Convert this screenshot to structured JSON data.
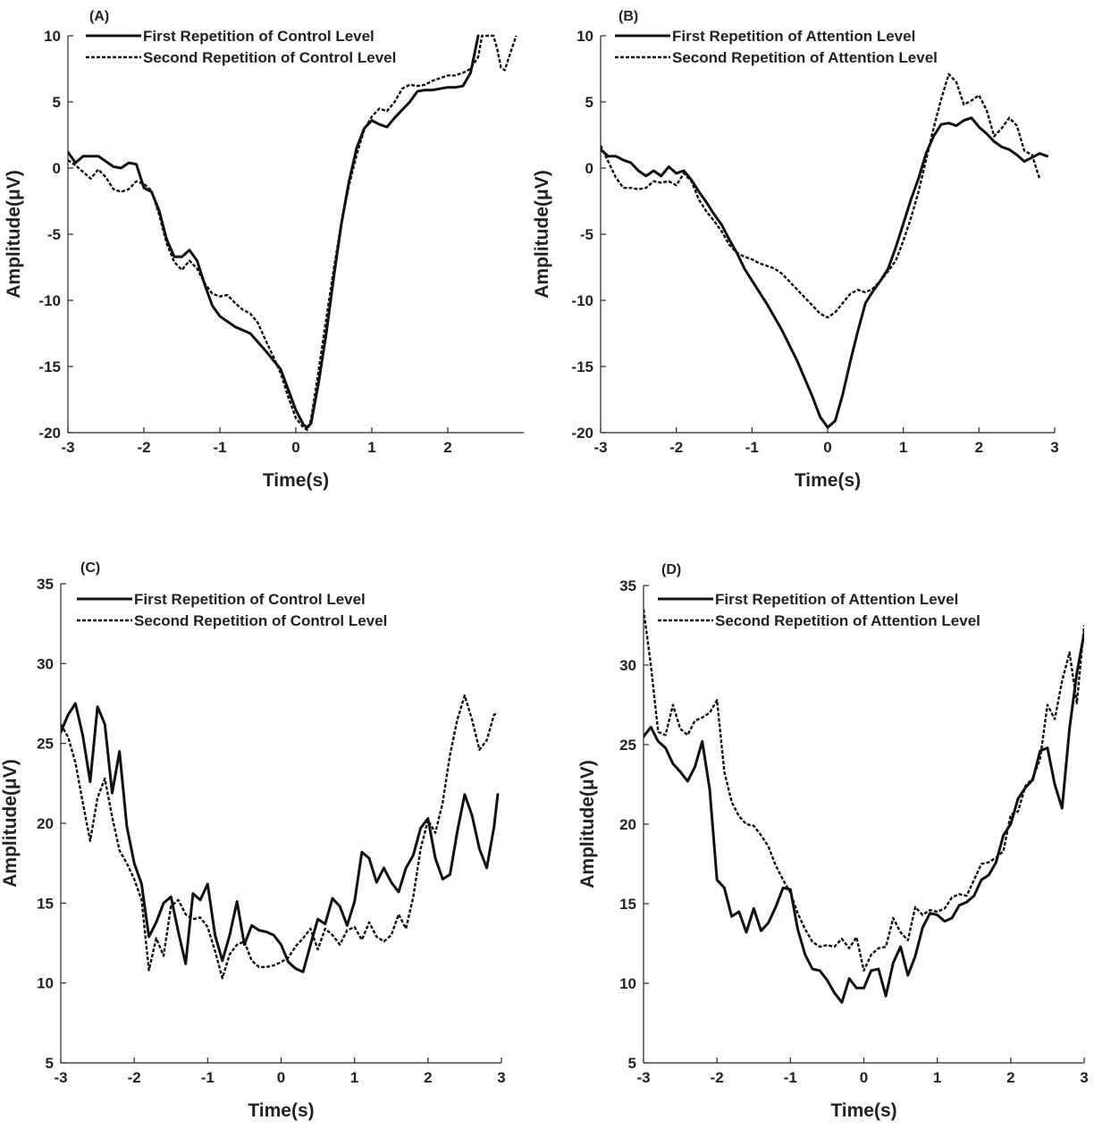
{
  "chart_data": [
    {
      "type": "line",
      "panel_label": "(A)",
      "xlabel": "Time(s)",
      "ylabel": "Amplitude(μV)",
      "xlim": [
        -3,
        3
      ],
      "ylim": [
        -20,
        10
      ],
      "xticks": [
        -3,
        -2,
        -1,
        0,
        1,
        2
      ],
      "yticks": [
        10,
        5,
        0,
        -5,
        -10,
        -15,
        -20
      ],
      "legend_position": "top-left",
      "series": [
        {
          "name": "First Repetition of Control Level",
          "style": "solid",
          "x": [
            -3,
            -2.9,
            -2.8,
            -2.6,
            -2.4,
            -2.3,
            -2.2,
            -2.1,
            -2,
            -1.9,
            -1.8,
            -1.7,
            -1.6,
            -1.5,
            -1.4,
            -1.3,
            -1.2,
            -1.1,
            -1,
            -0.8,
            -0.6,
            -0.4,
            -0.2,
            0,
            0.1,
            0.15,
            0.2,
            0.3,
            0.4,
            0.5,
            0.6,
            0.7,
            0.8,
            0.9,
            1,
            1.1,
            1.2,
            1.3,
            1.4,
            1.5,
            1.6,
            1.7,
            1.8,
            1.9,
            2,
            2.1,
            2.2,
            2.3,
            2.35,
            2.4
          ],
          "y": [
            1.2,
            0.4,
            0.9,
            0.9,
            0.1,
            0.0,
            0.4,
            0.3,
            -1.5,
            -1.8,
            -3.2,
            -5.4,
            -6.7,
            -6.7,
            -6.2,
            -7.0,
            -8.8,
            -10.4,
            -11.2,
            -12.0,
            -12.5,
            -13.8,
            -15.2,
            -18.3,
            -19.4,
            -19.6,
            -19.3,
            -16.2,
            -12.5,
            -8.2,
            -4.2,
            -1.0,
            1.5,
            3.0,
            3.6,
            3.3,
            3.1,
            3.8,
            4.4,
            5.0,
            5.8,
            5.9,
            5.9,
            6.0,
            6.1,
            6.1,
            6.2,
            7.2,
            8.6,
            10.0
          ]
        },
        {
          "name": "Second Repetition of Control Level",
          "style": "dashed",
          "x": [
            -3,
            -2.9,
            -2.8,
            -2.7,
            -2.6,
            -2.5,
            -2.4,
            -2.3,
            -2.2,
            -2.1,
            -2,
            -1.9,
            -1.8,
            -1.7,
            -1.6,
            -1.5,
            -1.4,
            -1.3,
            -1.2,
            -1.1,
            -1,
            -0.9,
            -0.8,
            -0.7,
            -0.6,
            -0.5,
            -0.4,
            -0.3,
            -0.2,
            -0.1,
            0,
            0.1,
            0.15,
            0.2,
            0.3,
            0.4,
            0.5,
            0.6,
            0.7,
            0.8,
            0.9,
            1,
            1.1,
            1.2,
            1.3,
            1.4,
            1.5,
            1.6,
            1.7,
            1.8,
            1.9,
            2,
            2.1,
            2.2,
            2.3,
            2.4,
            2.45,
            2.6,
            2.65,
            2.7,
            2.75,
            2.8,
            2.9
          ],
          "y": [
            0.6,
            0.2,
            -0.3,
            -0.8,
            -0.1,
            -0.7,
            -1.6,
            -1.8,
            -1.6,
            -1.0,
            -1.2,
            -1.7,
            -3.5,
            -5.7,
            -7.1,
            -7.7,
            -7.0,
            -7.6,
            -8.7,
            -9.5,
            -9.7,
            -9.6,
            -10.2,
            -10.7,
            -11.0,
            -11.7,
            -13.0,
            -14.2,
            -15.5,
            -17.3,
            -18.9,
            -19.6,
            -19.8,
            -19.0,
            -15.3,
            -11.4,
            -7.6,
            -4.1,
            -1.3,
            1.0,
            2.9,
            3.9,
            4.5,
            4.3,
            5.0,
            6.0,
            6.3,
            6.2,
            6.3,
            6.6,
            6.8,
            7.0,
            7.0,
            7.2,
            7.5,
            8.4,
            10.0,
            10.0,
            9.0,
            7.6,
            7.4,
            8.3,
            10.0
          ]
        }
      ]
    },
    {
      "type": "line",
      "panel_label": "(B)",
      "xlabel": "Time(s)",
      "ylabel": "Amplitude(μV)",
      "xlim": [
        -3,
        3
      ],
      "ylim": [
        -20,
        10
      ],
      "xticks": [
        -3,
        -2,
        -1,
        0,
        1,
        2,
        3
      ],
      "yticks": [
        10,
        5,
        0,
        -5,
        -10,
        -15,
        -20
      ],
      "legend_position": "top-left",
      "series": [
        {
          "name": "First Repetition of Attention Level",
          "style": "solid",
          "x": [
            -3,
            -2.9,
            -2.8,
            -2.7,
            -2.6,
            -2.5,
            -2.4,
            -2.3,
            -2.2,
            -2.1,
            -2,
            -1.9,
            -1.8,
            -1.7,
            -1.6,
            -1.5,
            -1.4,
            -1.3,
            -1.2,
            -1.1,
            -1,
            -0.8,
            -0.6,
            -0.4,
            -0.2,
            -0.1,
            0,
            0.1,
            0.2,
            0.3,
            0.4,
            0.5,
            0.6,
            0.7,
            0.8,
            0.9,
            1,
            1.1,
            1.2,
            1.3,
            1.4,
            1.5,
            1.6,
            1.7,
            1.8,
            1.9,
            2,
            2.1,
            2.2,
            2.3,
            2.4,
            2.5,
            2.6,
            2.7,
            2.8,
            2.9
          ],
          "y": [
            1.4,
            0.9,
            0.9,
            0.6,
            0.4,
            -0.2,
            -0.6,
            -0.2,
            -0.6,
            0.1,
            -0.4,
            -0.2,
            -0.9,
            -1.8,
            -2.6,
            -3.5,
            -4.3,
            -5.4,
            -6.4,
            -7.6,
            -8.5,
            -10.3,
            -12.3,
            -14.6,
            -17.3,
            -18.8,
            -19.6,
            -19.1,
            -17.1,
            -14.6,
            -12.3,
            -10.2,
            -9.3,
            -8.5,
            -7.6,
            -6.0,
            -4.2,
            -2.4,
            -0.8,
            1.1,
            2.4,
            3.3,
            3.4,
            3.2,
            3.6,
            3.8,
            3.1,
            2.6,
            2.0,
            1.6,
            1.4,
            1.0,
            0.5,
            0.8,
            1.1,
            0.9
          ]
        },
        {
          "name": "Second Repetition of Attention Level",
          "style": "dashed",
          "x": [
            -3,
            -2.9,
            -2.8,
            -2.7,
            -2.6,
            -2.5,
            -2.4,
            -2.3,
            -2.2,
            -2.1,
            -2,
            -1.9,
            -1.8,
            -1.7,
            -1.6,
            -1.5,
            -1.4,
            -1.3,
            -1.2,
            -1.1,
            -1,
            -0.9,
            -0.8,
            -0.7,
            -0.6,
            -0.5,
            -0.4,
            -0.3,
            -0.2,
            -0.1,
            0,
            0.1,
            0.2,
            0.3,
            0.4,
            0.5,
            0.6,
            0.7,
            0.8,
            0.9,
            1,
            1.1,
            1.2,
            1.3,
            1.4,
            1.5,
            1.6,
            1.7,
            1.8,
            1.9,
            2,
            2.1,
            2.2,
            2.3,
            2.4,
            2.5,
            2.6,
            2.7,
            2.8
          ],
          "y": [
            1.7,
            0.5,
            -0.7,
            -1.5,
            -1.5,
            -1.6,
            -1.5,
            -1.0,
            -1.1,
            -1.0,
            -1.3,
            -0.4,
            -1.0,
            -2.4,
            -3.3,
            -4.0,
            -4.8,
            -5.8,
            -6.4,
            -6.7,
            -6.9,
            -7.2,
            -7.4,
            -7.6,
            -8.0,
            -8.6,
            -9.2,
            -9.8,
            -10.4,
            -11.0,
            -11.3,
            -10.9,
            -10.2,
            -9.5,
            -9.2,
            -9.4,
            -9.1,
            -8.5,
            -7.8,
            -7.0,
            -5.5,
            -3.8,
            -1.8,
            0.6,
            3.0,
            5.2,
            7.1,
            6.5,
            4.8,
            5.1,
            5.5,
            4.4,
            2.4,
            3.0,
            3.8,
            3.2,
            1.3,
            1.0,
            -0.8
          ]
        }
      ]
    },
    {
      "type": "line",
      "panel_label": "(C)",
      "xlabel": "Time(s)",
      "ylabel": "Amplitude(μV)",
      "xlim": [
        -3,
        3
      ],
      "ylim": [
        5,
        35
      ],
      "xticks": [
        -3,
        -2,
        -1,
        0,
        1,
        2,
        3
      ],
      "yticks": [
        35,
        30,
        25,
        20,
        15,
        10,
        5
      ],
      "legend_position": "top-left",
      "series": [
        {
          "name": "First Repetition of Control Level",
          "style": "solid",
          "x": [
            -3,
            -2.9,
            -2.8,
            -2.7,
            -2.6,
            -2.5,
            -2.4,
            -2.3,
            -2.2,
            -2.1,
            -2,
            -1.9,
            -1.8,
            -1.7,
            -1.6,
            -1.5,
            -1.4,
            -1.3,
            -1.2,
            -1.1,
            -1,
            -0.9,
            -0.8,
            -0.7,
            -0.6,
            -0.5,
            -0.4,
            -0.3,
            -0.2,
            -0.1,
            0,
            0.1,
            0.2,
            0.3,
            0.4,
            0.5,
            0.6,
            0.7,
            0.8,
            0.9,
            1,
            1.1,
            1.2,
            1.3,
            1.4,
            1.5,
            1.6,
            1.7,
            1.8,
            1.9,
            2,
            2.1,
            2.2,
            2.3,
            2.4,
            2.5,
            2.6,
            2.7,
            2.8,
            2.9,
            2.95
          ],
          "y": [
            25.7,
            26.8,
            27.5,
            25.5,
            22.6,
            27.3,
            26.2,
            21.9,
            24.5,
            19.8,
            17.5,
            16.2,
            12.9,
            13.8,
            15.0,
            15.4,
            13.2,
            11.2,
            15.6,
            15.2,
            16.2,
            13.0,
            11.4,
            13.0,
            15.1,
            12.4,
            13.6,
            13.3,
            13.2,
            13.0,
            12.4,
            11.3,
            10.9,
            10.7,
            12.4,
            14.0,
            13.7,
            15.3,
            14.8,
            13.6,
            15.1,
            18.2,
            17.8,
            16.3,
            17.2,
            16.3,
            15.7,
            17.2,
            18.0,
            19.7,
            20.3,
            17.8,
            16.5,
            16.8,
            19.5,
            21.8,
            20.5,
            18.4,
            17.2,
            19.8,
            21.8
          ]
        },
        {
          "name": "Second Repetition of Control Level",
          "style": "dashed",
          "x": [
            -3,
            -2.9,
            -2.8,
            -2.7,
            -2.6,
            -2.5,
            -2.4,
            -2.3,
            -2.2,
            -2.1,
            -2,
            -1.9,
            -1.8,
            -1.7,
            -1.6,
            -1.5,
            -1.4,
            -1.3,
            -1.2,
            -1.1,
            -1,
            -0.9,
            -0.8,
            -0.7,
            -0.6,
            -0.5,
            -0.4,
            -0.3,
            -0.2,
            -0.1,
            0,
            0.1,
            0.2,
            0.3,
            0.4,
            0.5,
            0.6,
            0.7,
            0.8,
            0.9,
            1,
            1.1,
            1.2,
            1.3,
            1.4,
            1.5,
            1.6,
            1.7,
            1.8,
            1.9,
            2,
            2.1,
            2.2,
            2.3,
            2.4,
            2.5,
            2.6,
            2.7,
            2.8,
            2.9,
            2.95
          ],
          "y": [
            26.2,
            25.4,
            23.8,
            21.3,
            18.9,
            21.6,
            22.8,
            20.4,
            18.3,
            17.5,
            16.5,
            15.2,
            10.8,
            12.8,
            11.7,
            14.8,
            15.2,
            14.3,
            14.0,
            14.1,
            13.5,
            12.0,
            10.3,
            11.8,
            12.4,
            12.6,
            11.4,
            11.0,
            11.0,
            11.1,
            11.3,
            11.6,
            12.3,
            12.8,
            13.4,
            12.1,
            13.4,
            13.0,
            12.4,
            13.3,
            13.5,
            12.7,
            13.8,
            12.9,
            12.6,
            13.0,
            14.3,
            13.4,
            15.4,
            18.4,
            20.2,
            19.4,
            21.3,
            24.3,
            26.5,
            28.0,
            26.5,
            24.6,
            25.2,
            26.8,
            26.9
          ]
        }
      ]
    },
    {
      "type": "line",
      "panel_label": "(D)",
      "xlabel": "Time(s)",
      "ylabel": "Amplitude(μV)",
      "xlim": [
        -3,
        3
      ],
      "ylim": [
        5,
        35
      ],
      "xticks": [
        -3,
        -2,
        -1,
        0,
        1,
        2,
        3
      ],
      "yticks": [
        35,
        30,
        25,
        20,
        15,
        10,
        5
      ],
      "legend_position": "top-left",
      "series": [
        {
          "name": "First Repetition of Attention Level",
          "style": "solid",
          "x": [
            -3,
            -2.9,
            -2.8,
            -2.7,
            -2.6,
            -2.5,
            -2.4,
            -2.3,
            -2.2,
            -2.1,
            -2,
            -1.9,
            -1.8,
            -1.7,
            -1.6,
            -1.5,
            -1.4,
            -1.3,
            -1.2,
            -1.1,
            -1,
            -0.9,
            -0.8,
            -0.7,
            -0.6,
            -0.5,
            -0.4,
            -0.3,
            -0.2,
            -0.1,
            0,
            0.1,
            0.2,
            0.3,
            0.4,
            0.5,
            0.6,
            0.7,
            0.8,
            0.9,
            1,
            1.1,
            1.2,
            1.3,
            1.4,
            1.5,
            1.6,
            1.7,
            1.8,
            1.9,
            2,
            2.1,
            2.2,
            2.3,
            2.4,
            2.5,
            2.6,
            2.7,
            2.8,
            2.9,
            3
          ],
          "y": [
            25.5,
            26.1,
            25.2,
            24.8,
            23.8,
            23.3,
            22.7,
            23.6,
            25.2,
            22.2,
            16.5,
            16.0,
            14.2,
            14.5,
            13.2,
            14.7,
            13.3,
            13.8,
            14.8,
            16.0,
            15.9,
            13.4,
            11.8,
            10.9,
            10.8,
            10.2,
            9.4,
            8.8,
            10.3,
            9.7,
            9.7,
            10.8,
            10.9,
            9.2,
            11.3,
            12.3,
            10.5,
            11.7,
            13.5,
            14.4,
            14.3,
            13.9,
            14.1,
            14.9,
            15.1,
            15.5,
            16.5,
            16.8,
            17.6,
            19.3,
            20.0,
            21.6,
            22.3,
            22.8,
            24.6,
            24.8,
            22.5,
            21.0,
            26.0,
            29.5,
            32.0
          ]
        },
        {
          "name": "Second Repetition of Attention Level",
          "style": "dashed",
          "x": [
            -3,
            -2.9,
            -2.8,
            -2.7,
            -2.6,
            -2.5,
            -2.4,
            -2.3,
            -2.2,
            -2.1,
            -2,
            -1.9,
            -1.8,
            -1.7,
            -1.6,
            -1.5,
            -1.4,
            -1.3,
            -1.2,
            -1.1,
            -1,
            -0.9,
            -0.8,
            -0.7,
            -0.6,
            -0.5,
            -0.4,
            -0.3,
            -0.2,
            -0.1,
            0,
            0.1,
            0.2,
            0.3,
            0.4,
            0.5,
            0.6,
            0.7,
            0.8,
            0.9,
            1,
            1.1,
            1.2,
            1.3,
            1.4,
            1.5,
            1.6,
            1.7,
            1.8,
            1.9,
            2,
            2.1,
            2.2,
            2.3,
            2.4,
            2.5,
            2.6,
            2.7,
            2.8,
            2.9,
            3
          ],
          "y": [
            33.5,
            30.0,
            25.8,
            25.6,
            27.5,
            26.0,
            25.6,
            26.5,
            26.7,
            27.0,
            27.8,
            23.3,
            21.4,
            20.5,
            20.0,
            19.9,
            19.3,
            18.6,
            17.4,
            16.5,
            15.7,
            14.4,
            13.4,
            12.6,
            12.3,
            12.4,
            12.3,
            12.8,
            12.2,
            12.9,
            10.8,
            11.8,
            12.2,
            12.3,
            14.1,
            13.2,
            12.7,
            14.8,
            14.3,
            14.6,
            14.5,
            14.7,
            15.4,
            15.6,
            15.5,
            16.5,
            17.5,
            17.6,
            17.9,
            18.3,
            20.6,
            20.8,
            22.4,
            22.9,
            24.1,
            27.5,
            26.6,
            29.0,
            30.8,
            27.6,
            32.5
          ]
        }
      ]
    }
  ]
}
